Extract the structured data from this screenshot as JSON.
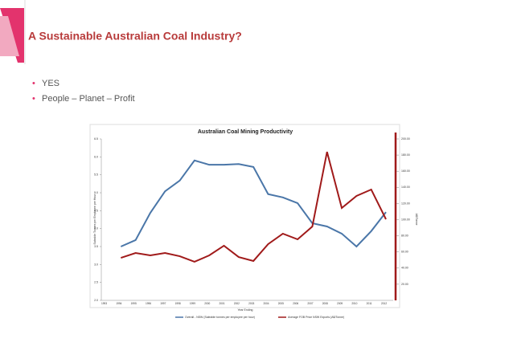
{
  "slide": {
    "title": "A Sustainable Australian Coal Industry?",
    "bullets": [
      "YES",
      "People – Planet – Profit"
    ]
  },
  "chart_data": {
    "type": "line",
    "title": "Australian Coal Mining Productivity",
    "x_label": "Year Ending",
    "y_label": "Saleable Tonnes per Employee per Hour",
    "y2_label": "A$/Tonne",
    "categories": [
      "1993",
      "1994",
      "1995",
      "1996",
      "1997",
      "1998",
      "1999",
      "2000",
      "2001",
      "2002",
      "2003",
      "2004",
      "2005",
      "2006",
      "2007",
      "2008",
      "2009",
      "2010",
      "2011",
      "2012"
    ],
    "series": [
      {
        "name": "Overall - NSW (Saleable tonnes per employee per hour)",
        "color": "#4a76a8",
        "values": [
          null,
          3.5,
          3.68,
          4.44,
          5.04,
          5.34,
          5.9,
          5.78,
          5.78,
          5.8,
          5.72,
          4.96,
          4.87,
          4.71,
          4.15,
          4.06,
          3.86,
          3.5,
          3.93,
          4.46
        ]
      },
      {
        "name": "Average FOB Price NSW Exports (A$/Tonne)",
        "color": "#a01a1a",
        "axis": "y2",
        "values": [
          null,
          52.7,
          58.7,
          55.7,
          58.7,
          54.7,
          47.8,
          55.7,
          67.7,
          53.7,
          48.8,
          69.7,
          82.6,
          75.6,
          91.5,
          184,
          114.4,
          129.4,
          137.3,
          100.5
        ]
      }
    ],
    "ylim": [
      2,
      6.5
    ],
    "yticks": [
      {
        "value": 2,
        "label": "2.0"
      },
      {
        "value": 2.5,
        "label": "2.5"
      },
      {
        "value": 3,
        "label": "3.0"
      },
      {
        "value": 3.5,
        "label": "3.5"
      },
      {
        "value": 4,
        "label": "4.0"
      },
      {
        "value": 4.5,
        "label": "4.5"
      },
      {
        "value": 5,
        "label": "5.0"
      },
      {
        "value": 5.5,
        "label": "5.5"
      },
      {
        "value": 6,
        "label": "6.0"
      },
      {
        "value": 6.5,
        "label": "6.5"
      }
    ],
    "y2lim": [
      0,
      200
    ],
    "y2ticks": [
      {
        "value": 20,
        "label": "20.00"
      },
      {
        "value": 40,
        "label": "40.00"
      },
      {
        "value": 60,
        "label": "60.00"
      },
      {
        "value": 80,
        "label": "80.00"
      },
      {
        "value": 100,
        "label": "100.00"
      },
      {
        "value": 120,
        "label": "120.00"
      },
      {
        "value": 140,
        "label": "140.00"
      },
      {
        "value": 160,
        "label": "160.00"
      },
      {
        "value": 180,
        "label": "180.00"
      },
      {
        "value": 200,
        "label": "200.00"
      }
    ],
    "legend": "bottom"
  }
}
